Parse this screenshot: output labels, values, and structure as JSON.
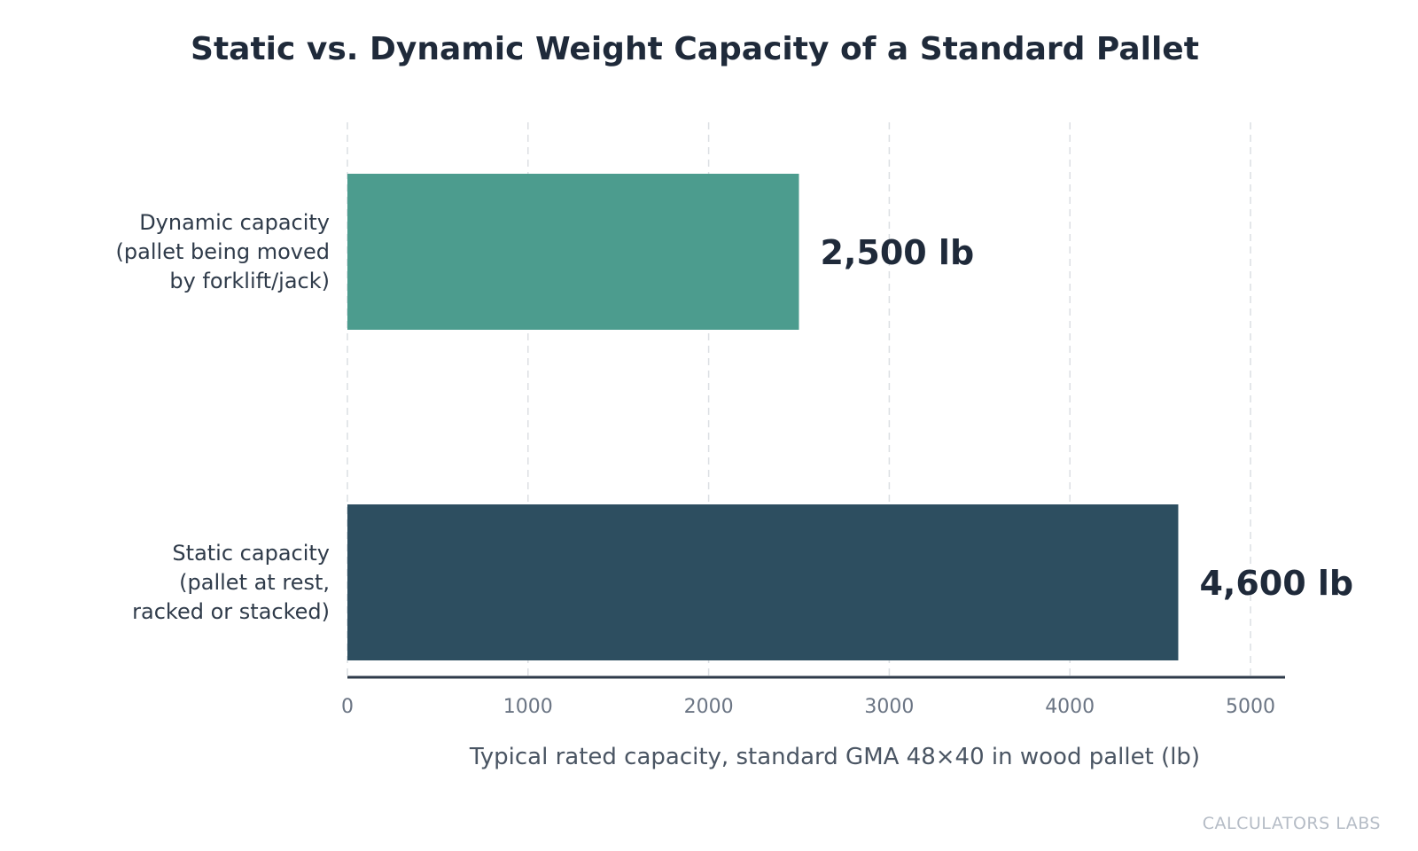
{
  "chart_data": {
    "type": "bar",
    "orientation": "horizontal",
    "title": "Static vs. Dynamic Weight Capacity of a Standard Pallet",
    "xlabel": "Typical rated capacity, standard GMA 48×40 in wood pallet (lb)",
    "ylabel": "",
    "xlim": [
      0,
      5200
    ],
    "x_ticks": [
      0,
      1000,
      2000,
      3000,
      4000,
      5000
    ],
    "grid": true,
    "categories": [
      {
        "lines": [
          "Dynamic capacity",
          "(pallet being moved",
          "by forklift/jack)"
        ],
        "value": 2500,
        "data_label": "2,500 lb",
        "color": "#4c9c8e"
      },
      {
        "lines": [
          "Static capacity",
          "(pallet at rest,",
          "racked or stacked)"
        ],
        "value": 4600,
        "data_label": "4,600 lb",
        "color": "#2d4e60"
      }
    ]
  },
  "watermark": "CALCULATORS LABS"
}
